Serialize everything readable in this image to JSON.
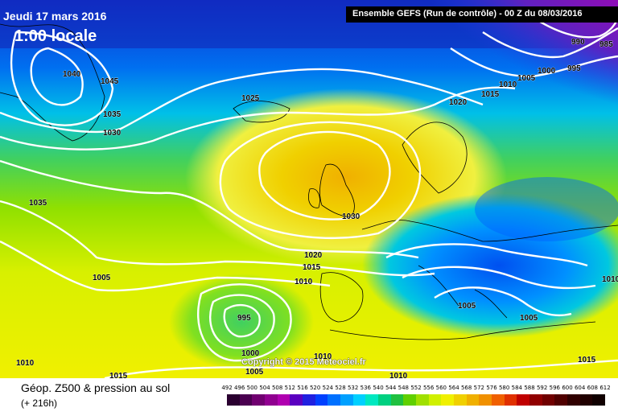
{
  "header": {
    "date": "Jeudi 17 mars 2016",
    "time": "1:00 locale",
    "run": "Ensemble GEFS  (Run de contrôle)  - 00 Z du 08/03/2016"
  },
  "copyright": "Copyright © 2015 Meteociel.fr",
  "isobar_labels": [
    {
      "text": "1040"
    },
    {
      "text": "1045"
    },
    {
      "text": "1035"
    },
    {
      "text": "1030"
    },
    {
      "text": "1025"
    },
    {
      "text": "1020"
    },
    {
      "text": "1015"
    },
    {
      "text": "1010"
    },
    {
      "text": "1005"
    },
    {
      "text": "1000"
    },
    {
      "text": "995"
    },
    {
      "text": "990"
    },
    {
      "text": "985"
    },
    {
      "text": "1035"
    },
    {
      "text": "1005"
    },
    {
      "text": "1030"
    },
    {
      "text": "1020"
    },
    {
      "text": "1015"
    },
    {
      "text": "1010"
    },
    {
      "text": "995"
    },
    {
      "text": "1000"
    },
    {
      "text": "1005"
    },
    {
      "text": "1010"
    },
    {
      "text": "1010"
    },
    {
      "text": "1015"
    },
    {
      "text": "1010"
    },
    {
      "text": "1005"
    },
    {
      "text": "1005"
    },
    {
      "text": "1015"
    },
    {
      "text": "1010"
    }
  ],
  "footer": {
    "title": "Géop. Z500 & pression au sol",
    "subtitle": "(+ 216h)"
  },
  "scale": {
    "labels": [
      "492",
      "496",
      "500",
      "504",
      "508",
      "512",
      "516",
      "520",
      "524",
      "528",
      "532",
      "536",
      "540",
      "544",
      "548",
      "552",
      "556",
      "560",
      "564",
      "568",
      "572",
      "576",
      "580",
      "584",
      "588",
      "592",
      "596",
      "600",
      "604",
      "608",
      "612"
    ],
    "colors": [
      "#2a0030",
      "#4a0050",
      "#700070",
      "#900090",
      "#b000b0",
      "#5a00c0",
      "#2020e0",
      "#0040ff",
      "#0070ff",
      "#00a0ff",
      "#00d0ff",
      "#00e8c0",
      "#00d080",
      "#20c040",
      "#60d000",
      "#a0e000",
      "#d0f000",
      "#f0f000",
      "#f0d000",
      "#f0b000",
      "#f09000",
      "#f06000",
      "#e03000",
      "#c00000",
      "#900000",
      "#700000",
      "#500000",
      "#300000",
      "#200000",
      "#100000"
    ]
  },
  "colors": {
    "title_text": "#ffffff",
    "isobar": "#ffffff",
    "coastline": "#000000"
  }
}
